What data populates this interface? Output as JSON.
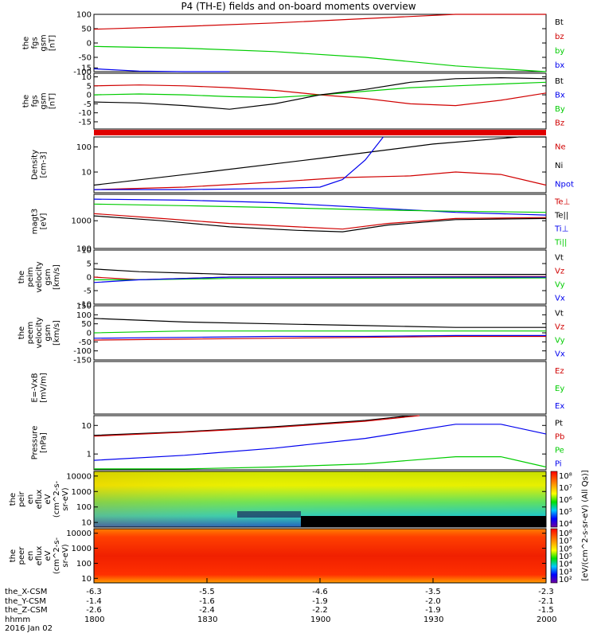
{
  "title": "P4 (TH-E) fields and on-board moments overview",
  "colors": {
    "black": "#000000",
    "red": "#d00000",
    "green": "#00cc00",
    "blue": "#0000ee"
  },
  "footer": {
    "rows": [
      {
        "label": "the_X-CSM",
        "values": [
          "-6.3",
          "-5.5",
          "-4.6",
          "-3.5",
          "-2.3"
        ]
      },
      {
        "label": "the_Y-CSM",
        "values": [
          "-1.4",
          "-1.6",
          "-1.9",
          "-2.0",
          "-2.1"
        ]
      },
      {
        "label": "the_Z-CSM",
        "values": [
          "-2.6",
          "-2.4",
          "-2.2",
          "-1.9",
          "-1.5"
        ]
      },
      {
        "label": "hhmm",
        "values": [
          "1800",
          "1830",
          "1900",
          "1930",
          "2000"
        ]
      }
    ],
    "date": "2016 Jan 02"
  },
  "colorbar_label": "[eV/(cm^2-s-sr-eV) (All Qs)]",
  "chart_data": [
    {
      "type": "line",
      "id": "fgs_gsm",
      "ylabel": [
        "the",
        "fgs",
        "gsm",
        "[nT]"
      ],
      "ylim": [
        -100,
        100
      ],
      "yticks": [
        "100",
        "50",
        "0",
        "-50",
        "-100"
      ],
      "legend": [
        {
          "name": "Bt",
          "color": "black"
        },
        {
          "name": "bz",
          "color": "red"
        },
        {
          "name": "by",
          "color": "green"
        },
        {
          "name": "bx",
          "color": "blue"
        }
      ],
      "series": [
        {
          "name": "bz",
          "color": "red",
          "x": [
            0,
            0.2,
            0.4,
            0.6,
            0.8,
            1
          ],
          "y": [
            48,
            58,
            70,
            85,
            100,
            115
          ]
        },
        {
          "name": "by",
          "color": "green",
          "x": [
            0,
            0.2,
            0.4,
            0.6,
            0.8,
            1
          ],
          "y": [
            -12,
            -18,
            -30,
            -50,
            -80,
            -110
          ]
        },
        {
          "name": "bx",
          "color": "blue",
          "x": [
            0,
            0.1,
            0.2,
            0.3
          ],
          "y": [
            -90,
            -98,
            -105,
            -115
          ]
        }
      ]
    },
    {
      "type": "line",
      "id": "fgs_dsl",
      "ylabel": [
        "the",
        "fgs",
        "gsm",
        "[nT]"
      ],
      "ylim": [
        -19,
        12
      ],
      "yticks": [
        "15",
        "10",
        "5",
        "0",
        "-5",
        "-10",
        "-15"
      ],
      "legend": [
        {
          "name": "Bt",
          "color": "black"
        },
        {
          "name": "Bx",
          "color": "blue"
        },
        {
          "name": "By",
          "color": "green"
        },
        {
          "name": "Bz",
          "color": "red"
        }
      ],
      "series": [
        {
          "name": "Bz",
          "color": "red",
          "x": [
            0,
            0.1,
            0.2,
            0.3,
            0.4,
            0.5,
            0.6,
            0.7,
            0.8,
            0.9,
            1
          ],
          "y": [
            5,
            5.5,
            5,
            4,
            2.5,
            0,
            -2,
            -5,
            -6,
            -3,
            1
          ]
        },
        {
          "name": "By",
          "color": "green",
          "x": [
            0,
            0.1,
            0.2,
            0.3,
            0.4,
            0.5,
            0.6,
            0.7,
            0.8,
            0.9,
            1
          ],
          "y": [
            0,
            0.5,
            0,
            -1,
            -1.5,
            0,
            2,
            4,
            5,
            6,
            7
          ]
        },
        {
          "name": "Bt",
          "color": "black",
          "x": [
            0,
            0.1,
            0.2,
            0.3,
            0.4,
            0.5,
            0.6,
            0.7,
            0.8,
            0.9,
            1
          ],
          "y": [
            -4,
            -4.5,
            -6,
            -8,
            -5,
            0,
            3,
            7,
            9,
            9.5,
            9
          ]
        }
      ]
    },
    {
      "type": "line",
      "id": "density",
      "scale": "log",
      "ylabel": [
        "Density",
        "[cm-3]"
      ],
      "ylim": [
        1.5,
        250
      ],
      "yticks": [
        "100",
        "10"
      ],
      "legend": [
        {
          "name": "Ne",
          "color": "red"
        },
        {
          "name": "Ni",
          "color": "black"
        },
        {
          "name": "Npot",
          "color": "blue"
        }
      ],
      "series": [
        {
          "name": "Ni",
          "color": "black",
          "x": [
            0,
            0.25,
            0.5,
            0.75,
            0.94,
            1
          ],
          "y": [
            3,
            10,
            35,
            130,
            250,
            250
          ]
        },
        {
          "name": "Ne",
          "color": "red",
          "x": [
            0,
            0.2,
            0.4,
            0.55,
            0.7,
            0.8,
            0.9,
            1
          ],
          "y": [
            2,
            2.5,
            4,
            6,
            7,
            10,
            8,
            3
          ]
        },
        {
          "name": "Npot",
          "color": "blue",
          "x": [
            0,
            0.2,
            0.4,
            0.5,
            0.55,
            0.6,
            0.64
          ],
          "y": [
            2,
            2,
            2.2,
            2.5,
            5,
            30,
            250
          ]
        }
      ]
    },
    {
      "type": "line",
      "id": "temps",
      "scale": "log",
      "ylabel": [
        "magt3",
        "[eV]"
      ],
      "ylim": [
        100,
        9000
      ],
      "yticks": [
        "1000",
        "100"
      ],
      "legend": [
        {
          "name": "Te⊥",
          "color": "red"
        },
        {
          "name": "Te||",
          "color": "black"
        },
        {
          "name": "Ti⊥",
          "color": "blue"
        },
        {
          "name": "Ti||",
          "color": "green"
        }
      ],
      "series": [
        {
          "name": "Ti⊥",
          "color": "blue",
          "x": [
            0,
            0.2,
            0.4,
            0.6,
            0.8,
            1
          ],
          "y": [
            6000,
            5500,
            4500,
            3000,
            2000,
            1600
          ]
        },
        {
          "name": "Ti||",
          "color": "green",
          "x": [
            0,
            0.2,
            0.4,
            0.6,
            0.8,
            1
          ],
          "y": [
            4000,
            3500,
            3000,
            2500,
            2200,
            2000
          ]
        },
        {
          "name": "Te⊥",
          "color": "red",
          "x": [
            0,
            0.15,
            0.3,
            0.45,
            0.55,
            0.65,
            0.8,
            1
          ],
          "y": [
            1800,
            1200,
            800,
            600,
            500,
            800,
            1200,
            1300
          ]
        },
        {
          "name": "Te||",
          "color": "black",
          "x": [
            0,
            0.15,
            0.3,
            0.45,
            0.55,
            0.65,
            0.8,
            1
          ],
          "y": [
            1500,
            1000,
            600,
            450,
            400,
            700,
            1100,
            1200
          ]
        }
      ]
    },
    {
      "type": "line",
      "id": "peim_vel",
      "ylabel": [
        "the",
        "peim",
        "velocity",
        "gsm",
        "[km/s]"
      ],
      "ylim": [
        -10,
        10
      ],
      "yticks": [
        "10",
        "5",
        "0",
        "-5",
        "-10"
      ],
      "legend": [
        {
          "name": "Vt",
          "color": "black"
        },
        {
          "name": "Vz",
          "color": "red"
        },
        {
          "name": "Vy",
          "color": "green"
        },
        {
          "name": "Vx",
          "color": "blue"
        }
      ],
      "series": [
        {
          "name": "Vt",
          "color": "black",
          "x": [
            0,
            0.1,
            0.3,
            1
          ],
          "y": [
            3,
            2,
            1,
            1
          ]
        },
        {
          "name": "Vz",
          "color": "red",
          "x": [
            0,
            0.1,
            0.3,
            1
          ],
          "y": [
            0,
            -1,
            0,
            0.2
          ]
        },
        {
          "name": "Vy",
          "color": "green",
          "x": [
            0,
            0.1,
            0.3,
            1
          ],
          "y": [
            -1,
            -1,
            -0.5,
            -0.3
          ]
        },
        {
          "name": "Vx",
          "color": "blue",
          "x": [
            0,
            0.1,
            0.3,
            1
          ],
          "y": [
            -2,
            -1,
            0,
            0
          ]
        }
      ]
    },
    {
      "type": "line",
      "id": "peem_vel",
      "ylabel": [
        "the",
        "peem",
        "velocity",
        "gsm",
        "[km/s]"
      ],
      "ylim": [
        -150,
        150
      ],
      "yticks": [
        "150",
        "100",
        "50",
        "0",
        "-50",
        "-100",
        "-150"
      ],
      "legend": [
        {
          "name": "Vt",
          "color": "black"
        },
        {
          "name": "Vz",
          "color": "red"
        },
        {
          "name": "Vy",
          "color": "green"
        },
        {
          "name": "Vx",
          "color": "blue"
        }
      ],
      "series": [
        {
          "name": "Vt",
          "color": "black",
          "x": [
            0,
            0.2,
            0.4,
            0.6,
            0.8,
            1
          ],
          "y": [
            80,
            60,
            50,
            40,
            30,
            30
          ]
        },
        {
          "name": "Vy",
          "color": "green",
          "x": [
            0,
            0.2,
            0.4,
            0.6,
            0.8,
            1
          ],
          "y": [
            0,
            10,
            10,
            10,
            10,
            10
          ]
        },
        {
          "name": "Vz",
          "color": "red",
          "x": [
            0,
            0.2,
            0.4,
            0.6,
            0.8,
            1
          ],
          "y": [
            -40,
            -35,
            -30,
            -25,
            -20,
            -20
          ]
        },
        {
          "name": "Vx",
          "color": "blue",
          "x": [
            0,
            0.2,
            0.4,
            0.6,
            0.8,
            1
          ],
          "y": [
            -30,
            -25,
            -20,
            -20,
            -15,
            -15
          ]
        }
      ]
    },
    {
      "type": "line",
      "id": "efield",
      "ylabel": [
        "E=-VxB",
        "[mV/m]"
      ],
      "ylim": [
        0,
        1
      ],
      "yticks": [],
      "legend": [
        {
          "name": "Ez",
          "color": "red"
        },
        {
          "name": "Ey",
          "color": "green"
        },
        {
          "name": "Ex",
          "color": "blue"
        }
      ],
      "series": []
    },
    {
      "type": "line",
      "id": "pressure",
      "scale": "log",
      "ylabel": [
        "Pressure",
        "[nPa]"
      ],
      "ylim": [
        0.28,
        22
      ],
      "yticks": [
        "10",
        "1"
      ],
      "legend": [
        {
          "name": "Pt",
          "color": "black"
        },
        {
          "name": "Pb",
          "color": "red"
        },
        {
          "name": "Pe",
          "color": "green"
        },
        {
          "name": "Pi",
          "color": "blue"
        }
      ],
      "series": [
        {
          "name": "Pt",
          "color": "black",
          "x": [
            0,
            0.2,
            0.4,
            0.6,
            0.7
          ],
          "y": [
            4.5,
            6,
            9,
            15,
            22
          ]
        },
        {
          "name": "Pb",
          "color": "red",
          "x": [
            0,
            0.2,
            0.4,
            0.6,
            0.72
          ],
          "y": [
            4.2,
            5.8,
            8.5,
            14,
            22
          ]
        },
        {
          "name": "Pi",
          "color": "blue",
          "x": [
            0,
            0.2,
            0.4,
            0.6,
            0.8,
            0.9,
            1
          ],
          "y": [
            0.6,
            0.9,
            1.6,
            3.5,
            11,
            11,
            5
          ]
        },
        {
          "name": "Pe",
          "color": "green",
          "x": [
            0,
            0.2,
            0.4,
            0.6,
            0.8,
            0.9,
            1
          ],
          "y": [
            0.3,
            0.3,
            0.35,
            0.45,
            0.8,
            0.8,
            0.35
          ]
        }
      ]
    },
    {
      "type": "heatmap",
      "id": "peir_eflux",
      "scale": "log",
      "ylabel": [
        "the",
        "peir",
        "en",
        "eflux",
        "eV",
        "(cm^2-s-",
        "sr-eV)"
      ],
      "ylim": [
        5,
        20000
      ],
      "yticks": [
        "10000",
        "1000",
        "100",
        "10"
      ],
      "colorbar_ticks": [
        "10⁸",
        "10⁷",
        "10⁶",
        "10⁵",
        "10⁴"
      ]
    },
    {
      "type": "heatmap",
      "id": "peer_eflux",
      "scale": "log",
      "ylabel": [
        "the",
        "peer",
        "en",
        "eflux",
        "eV",
        "(cm^2-s-",
        "sr-eV)"
      ],
      "ylim": [
        5,
        20000
      ],
      "yticks": [
        "10000",
        "1000",
        "100",
        "10"
      ],
      "colorbar_ticks": [
        "10⁸",
        "10⁷",
        "10⁶",
        "10⁵",
        "10⁴",
        "10³",
        "10²"
      ]
    }
  ]
}
